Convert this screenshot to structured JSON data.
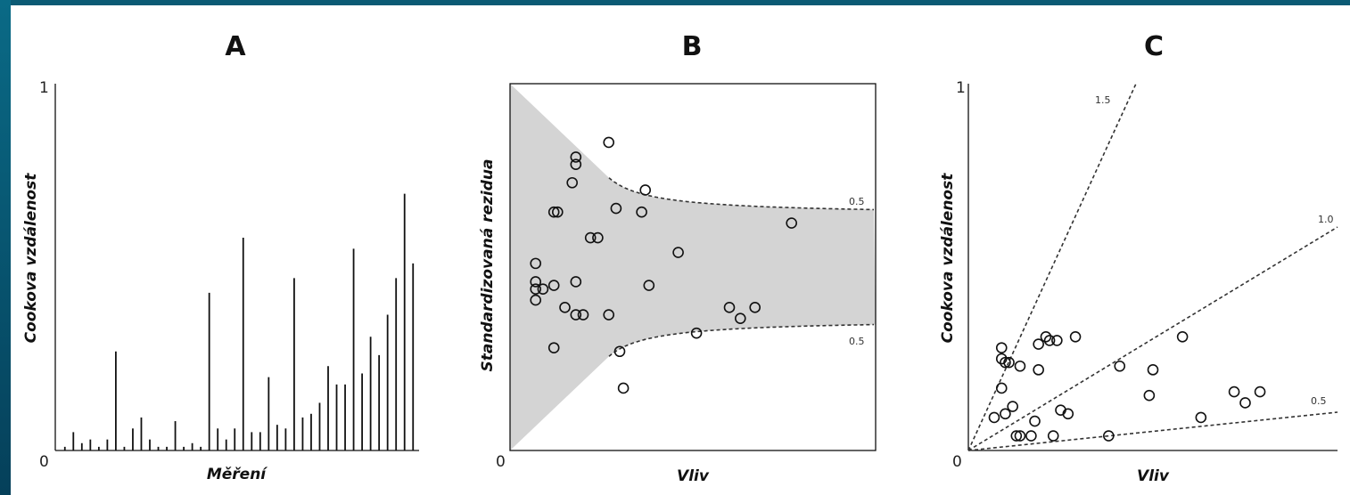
{
  "chart_data": [
    {
      "type": "bar",
      "panel": "A",
      "title": "A",
      "xlabel": "Měření",
      "ylabel": "Cookova vzdálenost",
      "ylim": [
        0,
        1
      ],
      "ytick_labels": [
        "0",
        "1"
      ],
      "values": [
        0.01,
        0.05,
        0.02,
        0.03,
        0.01,
        0.03,
        0.27,
        0.01,
        0.06,
        0.09,
        0.03,
        0.01,
        0.01,
        0.08,
        0.01,
        0.02,
        0.01,
        0.43,
        0.06,
        0.03,
        0.06,
        0.58,
        0.05,
        0.05,
        0.2,
        0.07,
        0.06,
        0.47,
        0.09,
        0.1,
        0.13,
        0.23,
        0.18,
        0.18,
        0.55,
        0.21,
        0.31,
        0.26,
        0.37,
        0.47,
        0.7,
        0.51
      ]
    },
    {
      "type": "scatter",
      "panel": "B",
      "title": "B",
      "xlabel": "Vliv",
      "ylabel": "Standardizovaná reziduа",
      "xlim": [
        0,
        1
      ],
      "ylim": [
        0,
        1
      ],
      "xtick_labels": [
        "0"
      ],
      "curve_labels": [
        "0.5",
        "0.5"
      ],
      "points": [
        [
          0.07,
          0.51
        ],
        [
          0.07,
          0.46
        ],
        [
          0.07,
          0.44
        ],
        [
          0.09,
          0.44
        ],
        [
          0.07,
          0.41
        ],
        [
          0.12,
          0.45
        ],
        [
          0.12,
          0.65
        ],
        [
          0.13,
          0.65
        ],
        [
          0.18,
          0.78
        ],
        [
          0.18,
          0.8
        ],
        [
          0.17,
          0.73
        ],
        [
          0.15,
          0.39
        ],
        [
          0.18,
          0.37
        ],
        [
          0.2,
          0.37
        ],
        [
          0.18,
          0.46
        ],
        [
          0.22,
          0.58
        ],
        [
          0.24,
          0.58
        ],
        [
          0.27,
          0.84
        ],
        [
          0.29,
          0.66
        ],
        [
          0.37,
          0.71
        ],
        [
          0.36,
          0.65
        ],
        [
          0.46,
          0.54
        ],
        [
          0.38,
          0.45
        ],
        [
          0.27,
          0.37
        ],
        [
          0.12,
          0.28
        ],
        [
          0.3,
          0.27
        ],
        [
          0.31,
          0.17
        ],
        [
          0.51,
          0.32
        ],
        [
          0.6,
          0.39
        ],
        [
          0.63,
          0.36
        ],
        [
          0.67,
          0.39
        ],
        [
          0.77,
          0.62
        ]
      ]
    },
    {
      "type": "scatter",
      "panel": "C",
      "title": "C",
      "xlabel": "Vliv",
      "ylabel": "Cookova vzdálenost",
      "xlim": [
        0,
        1
      ],
      "ylim": [
        0,
        1
      ],
      "ytick_labels": [
        "0",
        "1"
      ],
      "line_labels": [
        "1.5",
        "1.0",
        "0.5"
      ],
      "points": [
        [
          0.09,
          0.28
        ],
        [
          0.09,
          0.25
        ],
        [
          0.1,
          0.24
        ],
        [
          0.11,
          0.24
        ],
        [
          0.14,
          0.23
        ],
        [
          0.19,
          0.29
        ],
        [
          0.21,
          0.31
        ],
        [
          0.22,
          0.3
        ],
        [
          0.24,
          0.3
        ],
        [
          0.29,
          0.31
        ],
        [
          0.19,
          0.22
        ],
        [
          0.09,
          0.17
        ],
        [
          0.12,
          0.12
        ],
        [
          0.07,
          0.09
        ],
        [
          0.1,
          0.1
        ],
        [
          0.25,
          0.11
        ],
        [
          0.27,
          0.1
        ],
        [
          0.18,
          0.08
        ],
        [
          0.13,
          0.04
        ],
        [
          0.14,
          0.04
        ],
        [
          0.17,
          0.04
        ],
        [
          0.23,
          0.04
        ],
        [
          0.38,
          0.04
        ],
        [
          0.41,
          0.23
        ],
        [
          0.49,
          0.15
        ],
        [
          0.5,
          0.22
        ],
        [
          0.58,
          0.31
        ],
        [
          0.63,
          0.09
        ],
        [
          0.72,
          0.16
        ],
        [
          0.75,
          0.13
        ],
        [
          0.79,
          0.16
        ]
      ]
    }
  ]
}
